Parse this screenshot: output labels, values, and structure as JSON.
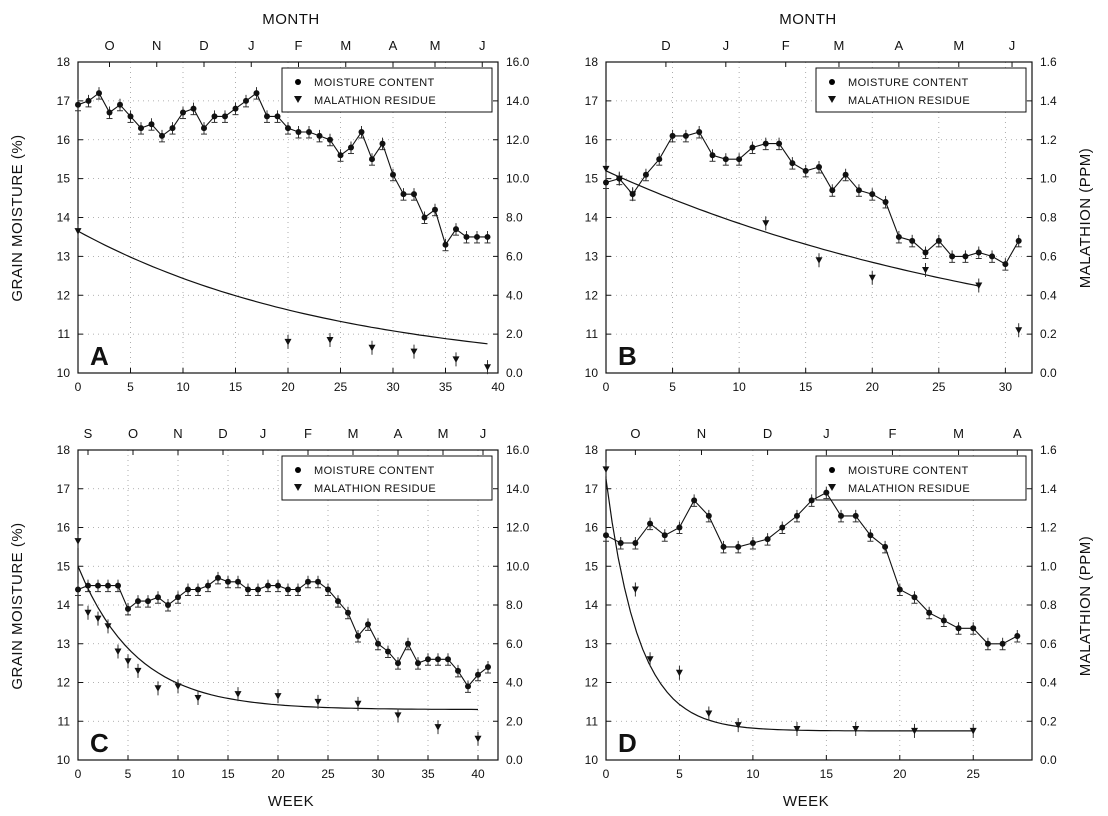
{
  "figure": {
    "top_title": "MONTH",
    "bottom_title": "WEEK",
    "left_axis_title": "GRAIN MOISTURE (%)",
    "right_axis_title": "MALATHION (PPM)",
    "legend": {
      "moisture": "MOISTURE CONTENT",
      "residue": "MALATHION RESIDUE"
    }
  },
  "chart_data": [
    {
      "type": "line",
      "panel_label": "A",
      "xlabel": "",
      "ylabel": "GRAIN MOISTURE (%)",
      "y2label": "",
      "xlim": [
        0,
        40
      ],
      "xticks": [
        0,
        5,
        10,
        15,
        20,
        25,
        30,
        35,
        40
      ],
      "ylim": [
        10,
        18
      ],
      "yticks": [
        10,
        11,
        12,
        13,
        14,
        15,
        16,
        17,
        18
      ],
      "y2lim": [
        0,
        16
      ],
      "y2ticks": [
        "0.0",
        "2.0",
        "4.0",
        "6.0",
        "8.0",
        "10.0",
        "12.0",
        "14.0",
        "16.0"
      ],
      "months": [
        {
          "label": "O",
          "week": 3
        },
        {
          "label": "N",
          "week": 7.5
        },
        {
          "label": "D",
          "week": 12
        },
        {
          "label": "J",
          "week": 16.5
        },
        {
          "label": "F",
          "week": 21
        },
        {
          "label": "M",
          "week": 25.5
        },
        {
          "label": "A",
          "week": 30
        },
        {
          "label": "M",
          "week": 34
        },
        {
          "label": "J",
          "week": 38.5
        }
      ],
      "legend_position": "top-right",
      "series": [
        {
          "name": "MOISTURE CONTENT",
          "axis": "left",
          "x": [
            0,
            1,
            2,
            3,
            4,
            5,
            6,
            7,
            8,
            9,
            10,
            11,
            12,
            13,
            14,
            15,
            16,
            17,
            18,
            19,
            20,
            21,
            22,
            23,
            24,
            25,
            26,
            27,
            28,
            29,
            30,
            31,
            32,
            33,
            34,
            35,
            36,
            37,
            38,
            39
          ],
          "y": [
            16.9,
            17.0,
            17.2,
            16.7,
            16.9,
            16.6,
            16.3,
            16.4,
            16.1,
            16.3,
            16.7,
            16.8,
            16.3,
            16.6,
            16.6,
            16.8,
            17.0,
            17.2,
            16.6,
            16.6,
            16.3,
            16.2,
            16.2,
            16.1,
            16.0,
            15.6,
            15.8,
            16.2,
            15.5,
            15.9,
            15.1,
            14.6,
            14.6,
            14.0,
            14.2,
            13.3,
            13.7,
            13.5,
            13.5,
            13.5
          ]
        },
        {
          "name": "MALATHION RESIDUE",
          "axis": "right",
          "x": [
            0,
            20,
            24,
            28,
            32,
            36,
            39
          ],
          "y": [
            7.3,
            1.6,
            1.7,
            1.3,
            1.1,
            0.7,
            0.3
          ],
          "fit_x": [
            0,
            39
          ],
          "fit_start": 7.3,
          "fit_asymptote": 0,
          "fit_rate": 0.0405
        }
      ]
    },
    {
      "type": "line",
      "panel_label": "B",
      "xlabel": "",
      "ylabel": "",
      "y2label": "MALATHION (PPM)",
      "xlim": [
        0,
        32
      ],
      "xticks": [
        0,
        5,
        10,
        15,
        20,
        25,
        30
      ],
      "ylim": [
        10,
        18
      ],
      "yticks": [
        10,
        11,
        12,
        13,
        14,
        15,
        16,
        17,
        18
      ],
      "y2lim": [
        0,
        1.6
      ],
      "y2ticks": [
        "0.0",
        "0.2",
        "0.4",
        "0.6",
        "0.8",
        "1.0",
        "1.2",
        "1.4",
        "1.6"
      ],
      "months": [
        {
          "label": "D",
          "week": 4.5
        },
        {
          "label": "J",
          "week": 9
        },
        {
          "label": "F",
          "week": 13.5
        },
        {
          "label": "M",
          "week": 17.5
        },
        {
          "label": "A",
          "week": 22
        },
        {
          "label": "M",
          "week": 26.5
        },
        {
          "label": "J",
          "week": 30.5
        }
      ],
      "legend_position": "top-right",
      "series": [
        {
          "name": "MOISTURE CONTENT",
          "axis": "left",
          "x": [
            0,
            1,
            2,
            3,
            4,
            5,
            6,
            7,
            8,
            9,
            10,
            11,
            12,
            13,
            14,
            15,
            16,
            17,
            18,
            19,
            20,
            21,
            22,
            23,
            24,
            25,
            26,
            27,
            28,
            29,
            30,
            31
          ],
          "y": [
            14.9,
            15.0,
            14.6,
            15.1,
            15.5,
            16.1,
            16.1,
            16.2,
            15.6,
            15.5,
            15.5,
            15.8,
            15.9,
            15.9,
            15.4,
            15.2,
            15.3,
            14.7,
            15.1,
            14.7,
            14.6,
            14.4,
            13.5,
            13.4,
            13.1,
            13.4,
            13.0,
            13.0,
            13.1,
            13.0,
            12.8,
            13.4
          ]
        },
        {
          "name": "MALATHION RESIDUE",
          "axis": "right",
          "x": [
            0,
            1,
            2,
            12,
            16,
            20,
            24,
            28,
            31
          ],
          "y": [
            1.05,
            1.0,
            0.92,
            0.77,
            0.58,
            0.49,
            0.53,
            0.45,
            0.22
          ],
          "fit_x": [
            0,
            28
          ],
          "fit_start": 1.04,
          "fit_asymptote": 0,
          "fit_rate": 0.0301
        }
      ]
    },
    {
      "type": "line",
      "panel_label": "C",
      "xlabel": "WEEK",
      "ylabel": "GRAIN MOISTURE (%)",
      "y2label": "",
      "xlim": [
        0,
        42
      ],
      "xticks": [
        0,
        5,
        10,
        15,
        20,
        25,
        30,
        35,
        40
      ],
      "ylim": [
        10,
        18
      ],
      "yticks": [
        10,
        11,
        12,
        13,
        14,
        15,
        16,
        17,
        18
      ],
      "y2lim": [
        0,
        16
      ],
      "y2ticks": [
        "0.0",
        "2.0",
        "4.0",
        "6.0",
        "8.0",
        "10.0",
        "12.0",
        "14.0",
        "16.0"
      ],
      "months": [
        {
          "label": "S",
          "week": 1
        },
        {
          "label": "O",
          "week": 5.5
        },
        {
          "label": "N",
          "week": 10
        },
        {
          "label": "D",
          "week": 14.5
        },
        {
          "label": "J",
          "week": 18.5
        },
        {
          "label": "F",
          "week": 23
        },
        {
          "label": "M",
          "week": 27.5
        },
        {
          "label": "A",
          "week": 32
        },
        {
          "label": "M",
          "week": 36.5
        },
        {
          "label": "J",
          "week": 40.5
        }
      ],
      "legend_position": "top-right",
      "series": [
        {
          "name": "MOISTURE CONTENT",
          "axis": "left",
          "x": [
            0,
            1,
            2,
            3,
            4,
            5,
            6,
            7,
            8,
            9,
            10,
            11,
            12,
            13,
            14,
            15,
            16,
            17,
            18,
            19,
            20,
            21,
            22,
            23,
            24,
            25,
            26,
            27,
            28,
            29,
            30,
            31,
            32,
            33,
            34,
            35,
            36,
            37,
            38,
            39,
            40,
            41
          ],
          "y": [
            14.4,
            14.5,
            14.5,
            14.5,
            14.5,
            13.9,
            14.1,
            14.1,
            14.2,
            14.0,
            14.2,
            14.4,
            14.4,
            14.5,
            14.7,
            14.6,
            14.6,
            14.4,
            14.4,
            14.5,
            14.5,
            14.4,
            14.4,
            14.6,
            14.6,
            14.4,
            14.1,
            13.8,
            13.2,
            13.5,
            13.0,
            12.8,
            12.5,
            13.0,
            12.5,
            12.6,
            12.6,
            12.6,
            12.3,
            11.9,
            12.2,
            12.4
          ]
        },
        {
          "name": "MALATHION RESIDUE",
          "axis": "right",
          "x": [
            0,
            1,
            2,
            3,
            4,
            5,
            6,
            8,
            10,
            12,
            16,
            20,
            24,
            28,
            32,
            36,
            40
          ],
          "y": [
            11.3,
            7.6,
            7.3,
            6.9,
            5.6,
            5.1,
            4.6,
            3.7,
            3.8,
            3.2,
            3.4,
            3.3,
            3.0,
            2.9,
            2.3,
            1.7,
            1.1
          ],
          "fit_x": [
            0,
            40
          ],
          "fit_start": 10.0,
          "fit_asymptote": 2.6,
          "fit_rate": 0.17
        }
      ]
    },
    {
      "type": "line",
      "panel_label": "D",
      "xlabel": "WEEK",
      "ylabel": "",
      "y2label": "MALATHION (PPM)",
      "xlim": [
        0,
        29
      ],
      "xticks": [
        0,
        5,
        10,
        15,
        20,
        25
      ],
      "ylim": [
        10,
        18
      ],
      "yticks": [
        10,
        11,
        12,
        13,
        14,
        15,
        16,
        17,
        18
      ],
      "y2lim": [
        0,
        1.6
      ],
      "y2ticks": [
        "0.0",
        "0.2",
        "0.4",
        "0.6",
        "0.8",
        "1.0",
        "1.2",
        "1.4",
        "1.6"
      ],
      "months": [
        {
          "label": "O",
          "week": 2
        },
        {
          "label": "N",
          "week": 6.5
        },
        {
          "label": "D",
          "week": 11
        },
        {
          "label": "J",
          "week": 15
        },
        {
          "label": "F",
          "week": 19.5
        },
        {
          "label": "M",
          "week": 24
        },
        {
          "label": "A",
          "week": 28
        }
      ],
      "legend_position": "top-right",
      "series": [
        {
          "name": "MOISTURE CONTENT",
          "axis": "left",
          "x": [
            0,
            1,
            2,
            3,
            4,
            5,
            6,
            7,
            8,
            9,
            10,
            11,
            12,
            13,
            14,
            15,
            16,
            17,
            18,
            19,
            20,
            21,
            22,
            23,
            24,
            25,
            26,
            27,
            28
          ],
          "y": [
            15.8,
            15.6,
            15.6,
            16.1,
            15.8,
            16.0,
            16.7,
            16.3,
            15.5,
            15.5,
            15.6,
            15.7,
            16.0,
            16.3,
            16.7,
            16.9,
            16.3,
            16.3,
            15.8,
            15.5,
            14.4,
            14.2,
            13.8,
            13.6,
            13.4,
            13.4,
            13.0,
            13.0,
            13.2
          ]
        },
        {
          "name": "MALATHION RESIDUE",
          "axis": "right",
          "x": [
            0,
            2,
            3,
            5,
            7,
            9,
            13,
            17,
            21,
            25
          ],
          "y": [
            1.5,
            0.88,
            0.52,
            0.45,
            0.24,
            0.18,
            0.16,
            0.16,
            0.15,
            0.15
          ],
          "fit_x": [
            0,
            25
          ],
          "fit_start": 1.45,
          "fit_asymptote": 0.15,
          "fit_rate": 0.45
        }
      ]
    }
  ]
}
